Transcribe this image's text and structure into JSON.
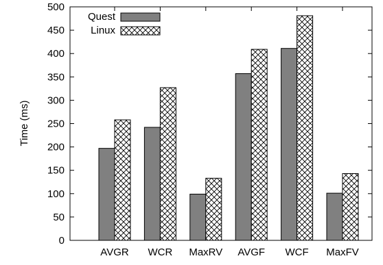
{
  "chart_data": {
    "type": "bar",
    "title": "",
    "xlabel": "",
    "ylabel": "Time (ms)",
    "ylim": [
      0,
      500
    ],
    "yticks": [
      0,
      50,
      100,
      150,
      200,
      250,
      300,
      350,
      400,
      450,
      500
    ],
    "grid": false,
    "legend_position": "top-left",
    "categories": [
      "AVGR",
      "WCR",
      "MaxRV",
      "AVGF",
      "WCF",
      "MaxFV"
    ],
    "series": [
      {
        "name": "Quest",
        "values": [
          197,
          242,
          99,
          357,
          411,
          101
        ],
        "color": "#808080",
        "pattern": "solid"
      },
      {
        "name": "Linux",
        "values": [
          258,
          327,
          133,
          409,
          481,
          143
        ],
        "color": "#ffffff",
        "pattern": "crosshatch"
      }
    ]
  }
}
